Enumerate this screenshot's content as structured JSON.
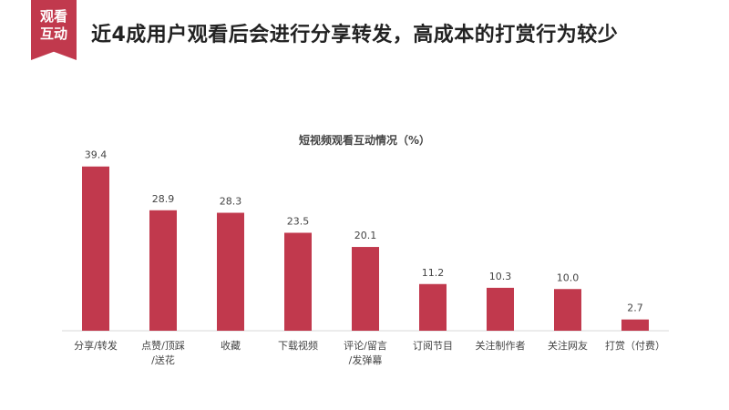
{
  "badge": {
    "line1": "观看",
    "line2": "互动"
  },
  "headline": "近4成用户观看后会进行分享转发，高成本的打赏行为较少",
  "colors": {
    "accent": "#c1394d",
    "bar": "#c1394d",
    "axis": "#d9d9d9",
    "text": "#444444"
  },
  "chart_data": {
    "type": "bar",
    "title": "短视频观看互动情况（%）",
    "xlabel": "",
    "ylabel": "",
    "ylim": [
      0,
      40
    ],
    "grid": false,
    "legend": "none",
    "categories": [
      "分享/转发",
      "点赞/顶踩/送花",
      "收藏",
      "下载视频",
      "评论/留言/发弹幕",
      "订阅节目",
      "关注制作者",
      "关注网友",
      "打赏（付费）"
    ],
    "category_lines": [
      [
        "分享/转发"
      ],
      [
        "点赞/顶踩",
        "/送花"
      ],
      [
        "收藏"
      ],
      [
        "下载视频"
      ],
      [
        "评论/留言",
        "/发弹幕"
      ],
      [
        "订阅节目"
      ],
      [
        "关注制作者"
      ],
      [
        "关注网友"
      ],
      [
        "打赏（付费）"
      ]
    ],
    "values": [
      39.4,
      28.9,
      28.3,
      23.5,
      20.1,
      11.2,
      10.3,
      10.0,
      2.7
    ],
    "value_labels": [
      "39.4",
      "28.9",
      "28.3",
      "23.5",
      "20.1",
      "11.2",
      "10.3",
      "10.0",
      "2.7"
    ]
  }
}
